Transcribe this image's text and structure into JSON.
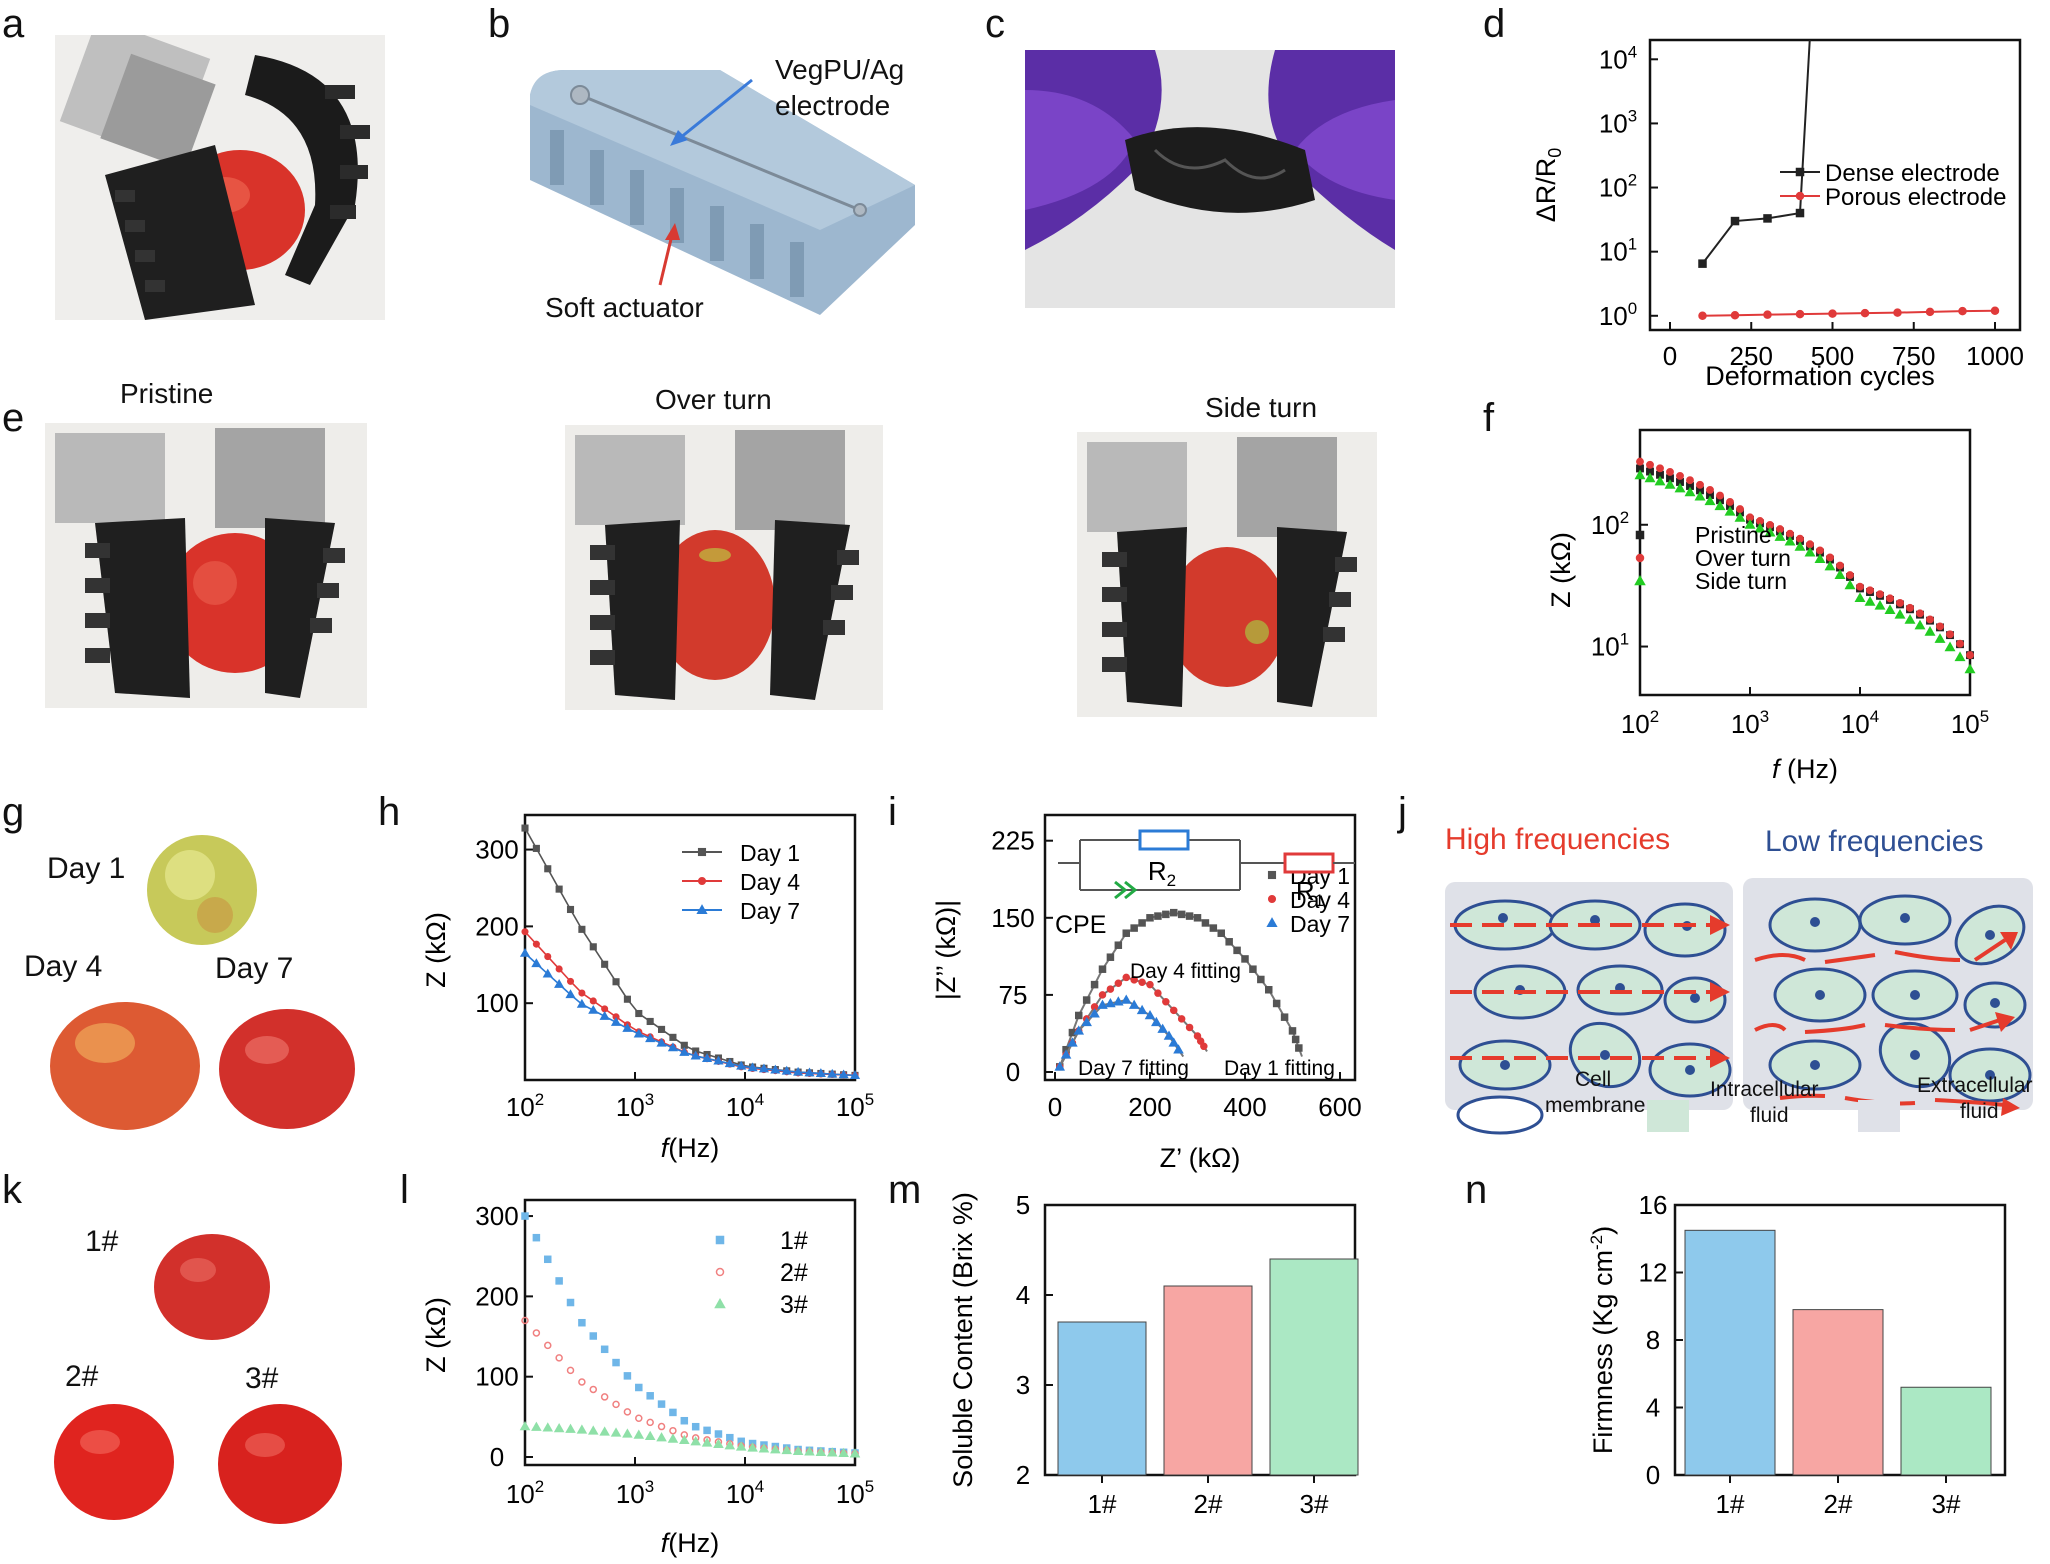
{
  "panel_labels": {
    "a": "a",
    "b": "b",
    "c": "c",
    "d": "d",
    "e": "e",
    "f": "f",
    "g": "g",
    "h": "h",
    "i": "i",
    "j": "j",
    "k": "k",
    "l": "l",
    "m": "m",
    "n": "n"
  },
  "panel_b": {
    "electrode_label_1": "VegPU/Ag",
    "electrode_label_2": "electrode",
    "actuator_label": "Soft actuator"
  },
  "panel_e": {
    "pristine": "Pristine",
    "over_turn": "Over turn",
    "side_turn": "Side turn"
  },
  "panel_g": {
    "day1": "Day 1",
    "day4": "Day 4",
    "day7": "Day 7"
  },
  "panel_i": {
    "r2": "R",
    "r2_sub": "2",
    "r1": "R",
    "r1_sub": "1",
    "cpe": "CPE",
    "day4_fit": "Day 4 fitting",
    "day7_fit": "Day 7 fitting",
    "day1_fit": "Day 1 fitting"
  },
  "panel_j": {
    "high": "High frequencies",
    "low": "Low frequencies",
    "cell_membrane_1": "Cell",
    "cell_membrane_2": "membrane",
    "intracellular_1": "Intracellular",
    "intracellular_2": "fluid",
    "extracellular_1": "Extracellular",
    "extracellular_2": "fluid"
  },
  "panel_k": {
    "s1": "1#",
    "s2": "2#",
    "s3": "3#"
  },
  "colors": {
    "black": "#222222",
    "red": "#e03a3a",
    "green": "#22cc22",
    "blue": "#2b7bd6",
    "lightblue": "#6fb6e8",
    "salmon": "#f08080",
    "mint": "#8fe0a8",
    "bar_blue": "#8ec9ec",
    "bar_red": "#f7a6a3",
    "bar_green": "#abe8c4",
    "j_red": "#e53b2c",
    "j_blue": "#2e4f93",
    "j_cell": "#cfe7d8",
    "j_bg": "#dfe1e8",
    "tomato": "#d9332a"
  },
  "chart_data": [
    {
      "id": "d",
      "type": "line",
      "title": "",
      "xlabel": "Deformation cycles",
      "ylabel": "ΔR/R0",
      "yscale": "log",
      "xlim": [
        0,
        1000
      ],
      "ylim": [
        0.6,
        20000
      ],
      "xticks": [
        "0",
        "250",
        "500",
        "750",
        "1000"
      ],
      "yticks": [
        "10^0",
        "10^1",
        "10^2",
        "10^3",
        "10^4"
      ],
      "series": [
        {
          "name": "Dense electrode",
          "x": [
            100,
            200,
            300,
            400,
            430
          ],
          "y": [
            6.5,
            30,
            33,
            40,
            20000
          ]
        },
        {
          "name": "Porous electrode",
          "x": [
            100,
            200,
            300,
            400,
            500,
            600,
            700,
            800,
            900,
            1000
          ],
          "y": [
            1.0,
            1.02,
            1.04,
            1.06,
            1.08,
            1.1,
            1.12,
            1.15,
            1.18,
            1.2
          ]
        }
      ],
      "legend": "center-right"
    },
    {
      "id": "f",
      "type": "scatter",
      "title": "",
      "xlabel": "f (Hz)",
      "ylabel": "Z (kΩ)",
      "xscale": "log",
      "yscale": "log",
      "xlim": [
        100,
        100000
      ],
      "xticks": [
        "10^2",
        "10^3",
        "10^4",
        "10^5"
      ],
      "yticks": [
        "10^1",
        "10^2"
      ],
      "series": [
        {
          "name": "Pristine",
          "x": [
            100,
            1000,
            10000,
            100000
          ],
          "y": [
            290,
            110,
            30,
            8.5
          ]
        },
        {
          "name": "Over turn",
          "x": [
            100,
            1000,
            10000,
            100000
          ],
          "y": [
            330,
            115,
            31,
            8.5
          ]
        },
        {
          "name": "Side turn",
          "x": [
            100,
            1000,
            10000,
            100000
          ],
          "y": [
            255,
            100,
            25,
            6.5
          ]
        }
      ],
      "legend": "bottom-left"
    },
    {
      "id": "h",
      "type": "line",
      "title": "",
      "xlabel": "f(Hz)",
      "ylabel": "Z (kΩ)",
      "xscale": "log",
      "xlim": [
        100,
        100000
      ],
      "ylim": [
        0,
        345
      ],
      "xticks": [
        "10^2",
        "10^3",
        "10^4",
        "10^5"
      ],
      "yticks": [
        "100",
        "200",
        "300"
      ],
      "series": [
        {
          "name": "Day 1",
          "x": [
            100,
            316,
            1000,
            3162,
            10000,
            31623,
            100000
          ],
          "y": [
            328,
            200,
            90,
            40,
            18,
            10,
            6
          ]
        },
        {
          "name": "Day 4",
          "x": [
            100,
            316,
            1000,
            3162,
            10000,
            31623,
            100000
          ],
          "y": [
            193,
            115,
            65,
            33,
            16,
            9,
            6
          ]
        },
        {
          "name": "Day 7",
          "x": [
            100,
            316,
            1000,
            3162,
            10000,
            31623,
            100000
          ],
          "y": [
            165,
            100,
            62,
            33,
            17,
            10,
            6
          ]
        }
      ],
      "legend": "top-right"
    },
    {
      "id": "i",
      "type": "scatter",
      "title": "",
      "xlabel": "Z' (kΩ)",
      "ylabel": "|Z'' (kΩ)|",
      "xlim": [
        0,
        600
      ],
      "ylim": [
        0,
        250
      ],
      "xticks": [
        "0",
        "200",
        "400",
        "600"
      ],
      "yticks": [
        "0",
        "75",
        "150",
        "225"
      ],
      "series": [
        {
          "name": "Day 1",
          "x": [
            10,
            50,
            100,
            150,
            200,
            250,
            300,
            350,
            400,
            450,
            500,
            520
          ],
          "y": [
            5,
            55,
            100,
            135,
            150,
            155,
            150,
            135,
            110,
            80,
            40,
            15
          ]
        },
        {
          "name": "Day 4",
          "x": [
            10,
            50,
            100,
            150,
            200,
            250,
            300,
            320
          ],
          "y": [
            5,
            40,
            75,
            92,
            85,
            60,
            35,
            20
          ]
        },
        {
          "name": "Day 7",
          "x": [
            10,
            50,
            100,
            150,
            200,
            240,
            270
          ],
          "y": [
            5,
            40,
            65,
            70,
            55,
            35,
            15
          ]
        }
      ],
      "legend": "top-right"
    },
    {
      "id": "l",
      "type": "scatter",
      "title": "",
      "xlabel": "f(Hz)",
      "ylabel": "Z (kΩ)",
      "xscale": "log",
      "xlim": [
        100,
        100000
      ],
      "ylim": [
        0,
        320
      ],
      "xticks": [
        "10^2",
        "10^3",
        "10^4",
        "10^5"
      ],
      "yticks": [
        "0",
        "100",
        "200",
        "300"
      ],
      "series": [
        {
          "name": "1#",
          "x": [
            100,
            316,
            1000,
            3162,
            10000,
            31623,
            100000
          ],
          "y": [
            300,
            170,
            90,
            40,
            18,
            9,
            5
          ]
        },
        {
          "name": "2#",
          "x": [
            100,
            316,
            1000,
            3162,
            10000,
            31623,
            100000
          ],
          "y": [
            170,
            95,
            50,
            25,
            13,
            7,
            4
          ]
        },
        {
          "name": "3#",
          "x": [
            100,
            316,
            1000,
            3162,
            10000,
            31623,
            100000
          ],
          "y": [
            38,
            34,
            28,
            20,
            12,
            7,
            4
          ]
        }
      ],
      "legend": "top-right"
    },
    {
      "id": "m",
      "type": "bar",
      "title": "",
      "xlabel": "",
      "ylabel": "Soluble Content (Brix %)",
      "ylim": [
        2,
        5
      ],
      "yticks": [
        "2",
        "3",
        "4",
        "5"
      ],
      "categories": [
        "1#",
        "2#",
        "3#"
      ],
      "values": [
        3.7,
        4.1,
        4.4
      ]
    },
    {
      "id": "n",
      "type": "bar",
      "title": "",
      "xlabel": "",
      "ylabel": "Firmness (Kg cm-2)",
      "ylim": [
        0,
        16
      ],
      "yticks": [
        "0",
        "4",
        "8",
        "12",
        "16"
      ],
      "categories": [
        "1#",
        "2#",
        "3#"
      ],
      "values": [
        14.5,
        9.8,
        5.2
      ]
    }
  ]
}
